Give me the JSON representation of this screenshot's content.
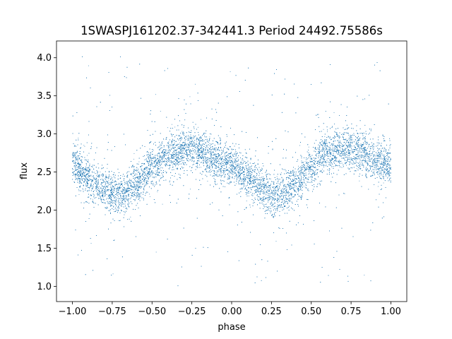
{
  "chart_data": {
    "type": "scatter",
    "title": "1SWASPJ161202.37-342441.3 Period 24492.75586s",
    "xlabel": "phase",
    "ylabel": "flux",
    "xlim": [
      -1.1,
      1.1
    ],
    "ylim": [
      0.8,
      4.22
    ],
    "xticks": [
      -1.0,
      -0.75,
      -0.5,
      -0.25,
      0.0,
      0.25,
      0.5,
      0.75,
      1.0
    ],
    "xtick_labels": [
      "−1.00",
      "−0.75",
      "−0.50",
      "−0.25",
      "0.00",
      "0.25",
      "0.50",
      "0.75",
      "1.00"
    ],
    "yticks": [
      1.0,
      1.5,
      2.0,
      2.5,
      3.0,
      3.5,
      4.0
    ],
    "ytick_labels": [
      "1.0",
      "1.5",
      "2.0",
      "2.5",
      "3.0",
      "3.5",
      "4.0"
    ],
    "grid": false,
    "legend": "none",
    "point_color": "#1f77b4",
    "phased_model": {
      "phase": [
        -1.0,
        -0.9,
        -0.8,
        -0.75,
        -0.7,
        -0.6,
        -0.5,
        -0.4,
        -0.3,
        -0.25,
        -0.2,
        -0.1,
        0.0,
        0.1,
        0.2,
        0.25,
        0.3,
        0.4,
        0.5,
        0.6,
        0.7,
        0.75,
        0.8,
        0.9,
        1.0
      ],
      "flux": [
        2.6,
        2.43,
        2.27,
        2.22,
        2.2,
        2.34,
        2.56,
        2.73,
        2.79,
        2.8,
        2.78,
        2.66,
        2.57,
        2.43,
        2.27,
        2.22,
        2.2,
        2.34,
        2.56,
        2.73,
        2.79,
        2.8,
        2.78,
        2.66,
        2.6
      ]
    },
    "core_scatter": 0.13,
    "outlier_range": [
      1.0,
      4.05
    ],
    "n_points": 16000
  }
}
